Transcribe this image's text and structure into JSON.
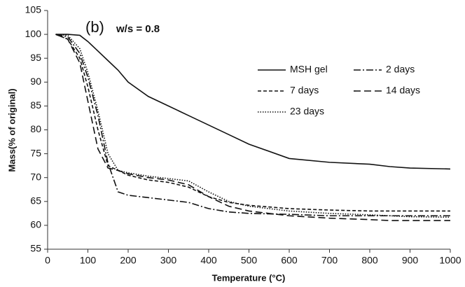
{
  "chart_data": {
    "type": "line",
    "annotations": [
      "(b)",
      "w/s = 0.8"
    ],
    "x_label": "Temperature (°C)",
    "y_label": "Mass(% of original)",
    "x": [
      20,
      50,
      80,
      100,
      125,
      150,
      175,
      200,
      250,
      300,
      350,
      400,
      450,
      500,
      600,
      700,
      800,
      850,
      900,
      1000
    ],
    "series": [
      {
        "name": "MSH gel",
        "color": "#111111",
        "dash": "solid",
        "values": [
          100,
          100,
          99.8,
          98.5,
          96.5,
          94.5,
          92.5,
          90,
          87,
          85,
          83,
          81,
          79,
          77,
          74,
          73.2,
          72.8,
          72.3,
          72,
          71.8
        ]
      },
      {
        "name": "2 days",
        "color": "#111111",
        "dash": "dashdot",
        "values": [
          100,
          99.5,
          96,
          91,
          83,
          73,
          67,
          66.3,
          65.8,
          65.3,
          64.8,
          63.5,
          62.8,
          62.5,
          62.3,
          62,
          62,
          62,
          62,
          62
        ]
      },
      {
        "name": "7 days",
        "color": "#111111",
        "dash": "dashed",
        "values": [
          100,
          99,
          95,
          89,
          80,
          72.5,
          71.5,
          70.5,
          69.5,
          69,
          68,
          66,
          64.8,
          64.2,
          63.5,
          63.2,
          63,
          63,
          63,
          63
        ]
      },
      {
        "name": "14 days",
        "color": "#111111",
        "dash": "longdash",
        "values": [
          100,
          99,
          94,
          86,
          76,
          72,
          71.5,
          70.8,
          70,
          69.5,
          68.5,
          66,
          64,
          63,
          62,
          61.5,
          61.2,
          61,
          61,
          61
        ]
      },
      {
        "name": "23 days",
        "color": "#111111",
        "dash": "dotted",
        "values": [
          100,
          99.8,
          97,
          92,
          84,
          75,
          71.5,
          71,
          70.3,
          69.8,
          69.3,
          67,
          65,
          64,
          63,
          62.5,
          62.2,
          62,
          61.8,
          61.7
        ]
      }
    ],
    "xlim": [
      0,
      1000
    ],
    "xticks": [
      0,
      100,
      200,
      300,
      400,
      500,
      600,
      700,
      800,
      900,
      1000
    ],
    "ylim": [
      55,
      105
    ],
    "yticks": [
      55,
      60,
      65,
      70,
      75,
      80,
      85,
      90,
      95,
      100,
      105
    ],
    "grid": false,
    "legend": "upper-right"
  }
}
